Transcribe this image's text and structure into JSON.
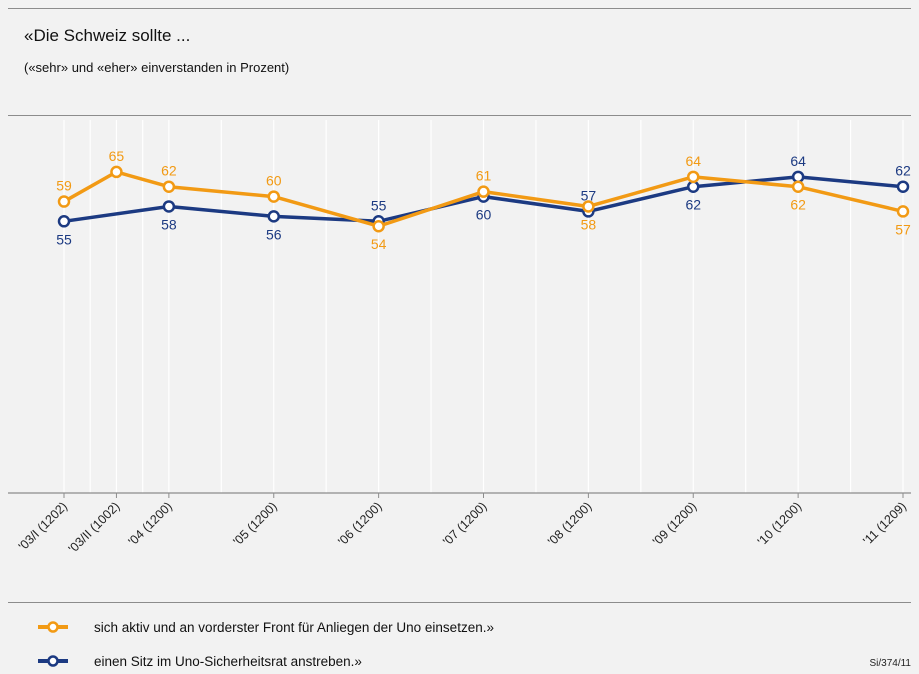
{
  "header": {
    "title": "«Die Schweiz sollte ...",
    "subtitle": "(«sehr» und «eher» einverstanden in Prozent)"
  },
  "chart_data": {
    "type": "line",
    "title": "«Die Schweiz sollte ...",
    "subtitle": "(«sehr» und «eher» einverstanden in Prozent)",
    "x": [
      "'03/I (1202)",
      "'03/II (1002)",
      "'04 (1200)",
      "'05 (1200)",
      "'06 (1200)",
      "'07 (1200)",
      "'08 (1200)",
      "'09 (1200)",
      "'10 (1200)",
      "'11 (1209)"
    ],
    "x_positions": [
      2003.0,
      2003.5,
      2004,
      2005,
      2006,
      2007,
      2008,
      2009,
      2010,
      2011
    ],
    "xlim": [
      2003.0,
      2011.0
    ],
    "ylim": [
      0,
      100
    ],
    "grid": "vertical",
    "legend_position": "bottom",
    "series": [
      {
        "name": "sich aktiv und an vorderster Front für Anliegen der Uno einsetzen.»",
        "color": "#f29a14",
        "values": [
          59,
          65,
          62,
          60,
          54,
          61,
          58,
          64,
          62,
          57
        ],
        "label_side": [
          "above",
          "above",
          "above",
          "above",
          "below",
          "above",
          "below",
          "above",
          "below",
          "below"
        ]
      },
      {
        "name": "einen Sitz im Uno-Sicherheitsrat anstreben.»",
        "color": "#1c3a82",
        "values": [
          55,
          null,
          58,
          56,
          55,
          60,
          57,
          62,
          64,
          62
        ],
        "label_side": [
          "below",
          null,
          "below",
          "below",
          "above",
          "below",
          "above",
          "below",
          "above",
          "above"
        ]
      }
    ]
  },
  "legend": {
    "items": [
      {
        "label": "sich aktiv und an vorderster Front für Anliegen der Uno einsetzen.»",
        "color": "#f29a14"
      },
      {
        "label": "einen Sitz im Uno-Sicherheitsrat anstreben.»",
        "color": "#1c3a82"
      }
    ]
  },
  "footer": {
    "source": "Si/374/11"
  }
}
